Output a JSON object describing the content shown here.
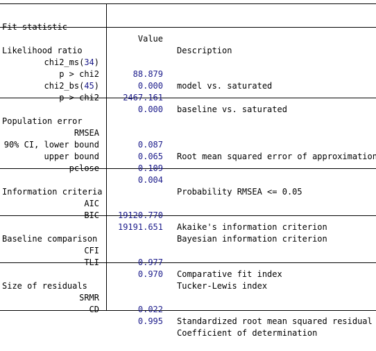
{
  "header": {
    "col_stat": "Fit statistic",
    "col_value": "Value",
    "col_desc": "Description"
  },
  "sections": [
    {
      "title": "Likelihood ratio",
      "rows": [
        {
          "stat_prefix": "chi2_ms(",
          "stat_num": "34",
          "stat_suffix": ")",
          "value": "88.879",
          "desc": "model vs. saturated"
        },
        {
          "stat": "p > chi2",
          "value": "0.000",
          "desc": ""
        },
        {
          "stat_prefix": "chi2_bs(",
          "stat_num": "45",
          "stat_suffix": ")",
          "value": "2467.161",
          "desc": "baseline vs. saturated"
        },
        {
          "stat": "p > chi2",
          "value": "0.000",
          "desc": ""
        }
      ]
    },
    {
      "title": "Population error",
      "rows": [
        {
          "stat": "RMSEA",
          "value": "0.087",
          "desc": "Root mean squared error of approximation"
        },
        {
          "stat": "90% CI, lower bound",
          "value": "0.065",
          "desc": ""
        },
        {
          "stat": "upper bound",
          "value": "0.109",
          "desc": ""
        },
        {
          "stat": "pclose",
          "value": "0.004",
          "desc": "Probability RMSEA <= 0.05"
        }
      ]
    },
    {
      "title": "Information criteria",
      "rows": [
        {
          "stat": "AIC",
          "value": "19120.770",
          "desc": "Akaike's information criterion"
        },
        {
          "stat": "BIC",
          "value": "19191.651",
          "desc": "Bayesian information criterion"
        }
      ]
    },
    {
      "title": "Baseline comparison",
      "rows": [
        {
          "stat": "CFI",
          "value": "0.977",
          "desc": "Comparative fit index"
        },
        {
          "stat": "TLI",
          "value": "0.970",
          "desc": "Tucker-Lewis index"
        }
      ]
    },
    {
      "title": "Size of residuals",
      "rows": [
        {
          "stat": "SRMR",
          "value": "0.022",
          "desc": "Standardized root mean squared residual"
        },
        {
          "stat": "CD",
          "value": "0.995",
          "desc": "Coefficient of determination"
        }
      ]
    }
  ]
}
